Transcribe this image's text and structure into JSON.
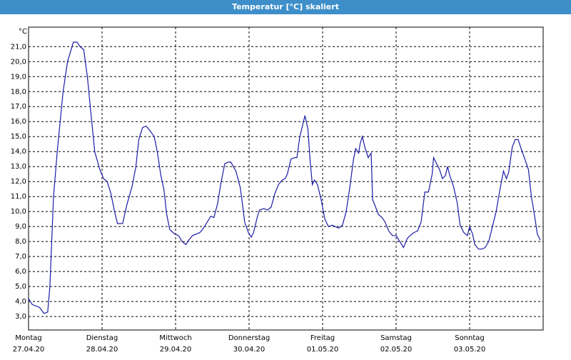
{
  "chart_data": {
    "type": "line",
    "title": "Temperatur [°C] skaliert",
    "y_unit": "°C",
    "xlim": [
      0,
      7
    ],
    "xticks": [
      {
        "value": 0,
        "label": "Montag",
        "date": "27.04.20"
      },
      {
        "value": 1,
        "label": "Dienstag",
        "date": "28.04.20"
      },
      {
        "value": 2,
        "label": "Mittwoch",
        "date": "29.04.20"
      },
      {
        "value": 3,
        "label": "Donnerstag",
        "date": "30.04.20"
      },
      {
        "value": 4,
        "label": "Freitag",
        "date": "01.05.20"
      },
      {
        "value": 5,
        "label": "Samstag",
        "date": "02.05.20"
      },
      {
        "value": 6,
        "label": "Sonntag",
        "date": "03.05.20"
      }
    ],
    "ylim": [
      2.1,
      22.3
    ],
    "yticks": [
      {
        "value": 3,
        "label": "3,0"
      },
      {
        "value": 4,
        "label": "4,0"
      },
      {
        "value": 5,
        "label": "5,0"
      },
      {
        "value": 6,
        "label": "6,0"
      },
      {
        "value": 7,
        "label": "7,0"
      },
      {
        "value": 8,
        "label": "8,0"
      },
      {
        "value": 9,
        "label": "9,0"
      },
      {
        "value": 10,
        "label": "10,0"
      },
      {
        "value": 11,
        "label": "11,0"
      },
      {
        "value": 12,
        "label": "12,0"
      },
      {
        "value": 13,
        "label": "13,0"
      },
      {
        "value": 14,
        "label": "14,0"
      },
      {
        "value": 15,
        "label": "15,0"
      },
      {
        "value": 16,
        "label": "16,0"
      },
      {
        "value": 17,
        "label": "17,0"
      },
      {
        "value": 18,
        "label": "18,0"
      },
      {
        "value": 19,
        "label": "19,0"
      },
      {
        "value": 20,
        "label": "20,0"
      },
      {
        "value": 21,
        "label": "21,0"
      }
    ],
    "grid": true,
    "color": "#1c1ca8",
    "x": [
      0,
      0.05,
      0.15,
      0.21,
      0.26,
      0.29,
      0.34,
      0.39,
      0.47,
      0.53,
      0.61,
      0.66,
      0.7,
      0.75,
      0.8,
      0.85,
      0.9,
      0.97,
      1.02,
      1.07,
      1.12,
      1.17,
      1.21,
      1.28,
      1.34,
      1.41,
      1.46,
      1.5,
      1.55,
      1.6,
      1.65,
      1.71,
      1.75,
      1.8,
      1.84,
      1.88,
      1.92,
      1.99,
      2.04,
      2.09,
      2.14,
      2.18,
      2.23,
      2.33,
      2.38,
      2.43,
      2.48,
      2.52,
      2.57,
      2.62,
      2.67,
      2.72,
      2.75,
      2.82,
      2.88,
      2.91,
      2.94,
      2.99,
      3.03,
      3.06,
      3.11,
      3.14,
      3.2,
      3.25,
      3.3,
      3.35,
      3.4,
      3.45,
      3.49,
      3.52,
      3.57,
      3.62,
      3.65,
      3.69,
      3.76,
      3.8,
      3.83,
      3.86,
      3.89,
      3.93,
      3.98,
      4.03,
      4.08,
      4.13,
      4.17,
      4.22,
      4.27,
      4.32,
      4.37,
      4.42,
      4.45,
      4.49,
      4.51,
      4.54,
      4.58,
      4.62,
      4.66,
      4.68,
      4.72,
      4.76,
      4.81,
      4.85,
      4.9,
      4.95,
      5.0,
      5.05,
      5.1,
      5.15,
      5.19,
      5.24,
      5.29,
      5.34,
      5.39,
      5.44,
      5.49,
      5.51,
      5.55,
      5.59,
      5.63,
      5.67,
      5.7,
      5.73,
      5.78,
      5.83,
      5.87,
      5.92,
      5.97,
      6.0,
      6.04,
      6.07,
      6.12,
      6.17,
      6.21,
      6.26,
      6.31,
      6.36,
      6.41,
      6.46,
      6.5,
      6.53,
      6.58,
      6.62,
      6.66,
      6.7,
      6.75,
      6.8,
      6.84,
      6.89,
      6.92,
      6.96
    ],
    "values": [
      4.2,
      3.8,
      3.6,
      3.2,
      3.3,
      5.0,
      11.0,
      14.0,
      18.0,
      20.0,
      21.3,
      21.3,
      21.0,
      20.8,
      19.0,
      16.5,
      14.0,
      12.8,
      12.2,
      12.0,
      11.2,
      10.0,
      9.2,
      9.2,
      10.5,
      11.7,
      13.0,
      14.8,
      15.6,
      15.7,
      15.4,
      15.0,
      14.0,
      12.4,
      11.5,
      9.8,
      8.8,
      8.5,
      8.4,
      8.0,
      7.8,
      8.1,
      8.4,
      8.6,
      8.9,
      9.3,
      9.7,
      9.6,
      10.5,
      12.0,
      13.2,
      13.3,
      13.3,
      12.7,
      11.6,
      10.5,
      9.3,
      8.6,
      8.3,
      8.6,
      9.6,
      10.1,
      10.2,
      10.1,
      10.3,
      11.2,
      11.8,
      12.1,
      12.2,
      12.5,
      13.5,
      13.6,
      13.6,
      15.0,
      16.4,
      15.5,
      13.4,
      11.8,
      12.1,
      11.8,
      10.8,
      9.5,
      9.0,
      9.1,
      9.0,
      8.9,
      9.1,
      10.0,
      11.6,
      13.5,
      14.2,
      13.9,
      14.5,
      15.0,
      14.2,
      13.6,
      13.9,
      10.8,
      10.3,
      9.8,
      9.6,
      9.3,
      8.7,
      8.4,
      8.4,
      8.0,
      7.6,
      8.2,
      8.4,
      8.6,
      8.7,
      9.3,
      11.3,
      11.3,
      12.5,
      13.6,
      13.2,
      12.8,
      12.2,
      12.4,
      13.0,
      12.4,
      11.7,
      10.6,
      9.1,
      8.6,
      8.4,
      9.0,
      8.5,
      7.8,
      7.5,
      7.5,
      7.6,
      8.0,
      9.0,
      10.0,
      11.4,
      12.7,
      12.2,
      12.6,
      14.3,
      14.8,
      14.8,
      14.2,
      13.5,
      12.8,
      11.0,
      9.5,
      8.5,
      8.1
    ]
  }
}
